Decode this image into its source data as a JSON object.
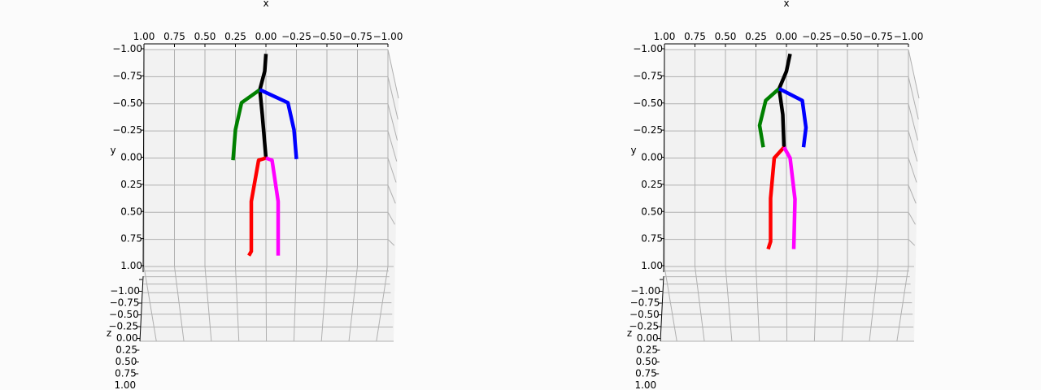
{
  "chart_data": [
    {
      "type": "scatter",
      "projection": "3d",
      "xlabel": "x",
      "ylabel": "y",
      "zlabel": "z",
      "xlim": [
        1.0,
        -1.0
      ],
      "ylim": [
        -1.0,
        1.0
      ],
      "zlim": [
        -1.0,
        1.0
      ],
      "xticks": [
        "1.00",
        "0.75",
        "0.50",
        "0.25",
        "0.00",
        "−0.25",
        "−0.50",
        "−0.75",
        "−1.00"
      ],
      "yticks": [
        "−1.00",
        "−0.75",
        "−0.50",
        "−0.25",
        "0.00",
        "0.25",
        "0.50",
        "0.75",
        "1.00"
      ],
      "zticks": [
        "−1.00",
        "−0.75",
        "−0.50",
        "−0.25",
        "0.00",
        "0.25",
        "0.50",
        "0.75",
        "1.00"
      ],
      "grid": true,
      "series": [
        {
          "color": "#000000",
          "x": [
            0.0,
            0.01,
            0.05,
            0.03,
            0.0
          ],
          "y": [
            -0.96,
            -0.8,
            -0.63,
            -0.4,
            0.0
          ]
        },
        {
          "color": "#008000",
          "x": [
            0.05,
            0.2,
            0.25,
            0.27
          ],
          "y": [
            -0.63,
            -0.51,
            -0.26,
            0.02
          ]
        },
        {
          "color": "#0000ff",
          "x": [
            0.05,
            -0.18,
            -0.23,
            -0.25
          ],
          "y": [
            -0.63,
            -0.51,
            -0.26,
            0.01
          ]
        },
        {
          "color": "#ff0000",
          "x": [
            0.0,
            0.06,
            0.12,
            0.12,
            0.14
          ],
          "y": [
            0.0,
            0.02,
            0.4,
            0.86,
            0.9
          ]
        },
        {
          "color": "#ff00ff",
          "x": [
            0.0,
            -0.05,
            -0.1,
            -0.1
          ],
          "y": [
            0.0,
            0.02,
            0.4,
            0.9
          ]
        }
      ]
    },
    {
      "type": "scatter",
      "projection": "3d",
      "xlabel": "x",
      "ylabel": "y",
      "zlabel": "z",
      "xlim": [
        1.0,
        -1.0
      ],
      "ylim": [
        -1.0,
        1.0
      ],
      "zlim": [
        -1.0,
        1.0
      ],
      "xticks": [
        "1.00",
        "0.75",
        "0.50",
        "0.25",
        "0.00",
        "−0.25",
        "−0.50",
        "−0.75",
        "−1.00"
      ],
      "yticks": [
        "−1.00",
        "−0.75",
        "−0.50",
        "−0.25",
        "0.00",
        "0.25",
        "0.50",
        "0.75",
        "1.00"
      ],
      "zticks": [
        "−1.00",
        "−0.75",
        "−0.50",
        "−0.25",
        "0.00",
        "0.25",
        "0.50",
        "0.75",
        "1.00"
      ],
      "grid": true,
      "series": [
        {
          "color": "#000000",
          "x": [
            -0.03,
            0.0,
            0.06,
            0.03,
            0.02
          ],
          "y": [
            -0.96,
            -0.8,
            -0.64,
            -0.4,
            -0.1
          ]
        },
        {
          "color": "#008000",
          "x": [
            0.06,
            0.17,
            0.22,
            0.19
          ],
          "y": [
            -0.64,
            -0.53,
            -0.3,
            -0.1
          ]
        },
        {
          "color": "#0000ff",
          "x": [
            0.06,
            -0.13,
            -0.16,
            -0.14
          ],
          "y": [
            -0.64,
            -0.53,
            -0.28,
            -0.1
          ]
        },
        {
          "color": "#ff0000",
          "x": [
            0.02,
            0.1,
            0.13,
            0.13,
            0.15
          ],
          "y": [
            -0.1,
            0.0,
            0.37,
            0.77,
            0.84
          ]
        },
        {
          "color": "#ff00ff",
          "x": [
            0.02,
            -0.03,
            -0.07,
            -0.06
          ],
          "y": [
            -0.1,
            0.0,
            0.38,
            0.84
          ]
        }
      ]
    }
  ]
}
